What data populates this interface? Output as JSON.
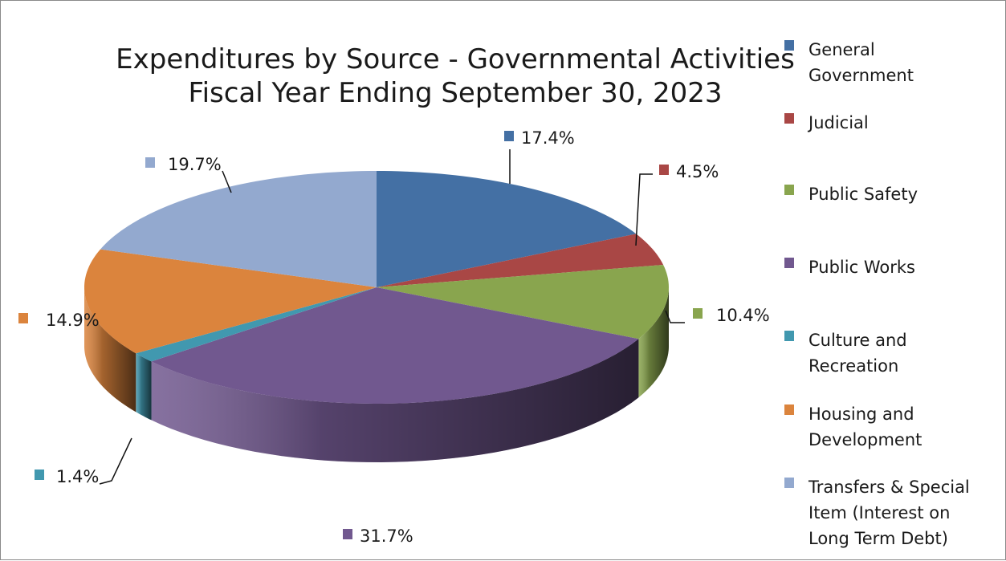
{
  "chart_data": {
    "type": "pie",
    "title": "Expenditures by Source - Governmental Activities",
    "subtitle": "Fiscal Year Ending September 30, 2023",
    "legend_position": "right",
    "categories": [
      "General Government",
      "Judicial",
      "Public Safety",
      "Public Works",
      "Culture and Recreation",
      "Housing and Development",
      "Transfers & Special Item (Interest on Long Term Debt)"
    ],
    "values": [
      17.4,
      4.5,
      10.4,
      31.7,
      1.4,
      14.9,
      19.7
    ],
    "labels": [
      "17.4%",
      "4.5%",
      "10.4%",
      "31.7%",
      "1.4%",
      "14.9%",
      "19.7%"
    ],
    "legend_lines": [
      [
        "General",
        "Government"
      ],
      [
        "Judicial"
      ],
      [
        "Public Safety"
      ],
      [
        "Public Works"
      ],
      [
        "Culture and",
        "Recreation"
      ],
      [
        "Housing and",
        "Development"
      ],
      [
        "Transfers & Special",
        "Item (Interest on",
        "Long Term Debt)"
      ]
    ],
    "colors": [
      "#4470a4",
      "#a94745",
      "#89a54e",
      "#71588f",
      "#4198af",
      "#db843d",
      "#93a9cf"
    ]
  }
}
